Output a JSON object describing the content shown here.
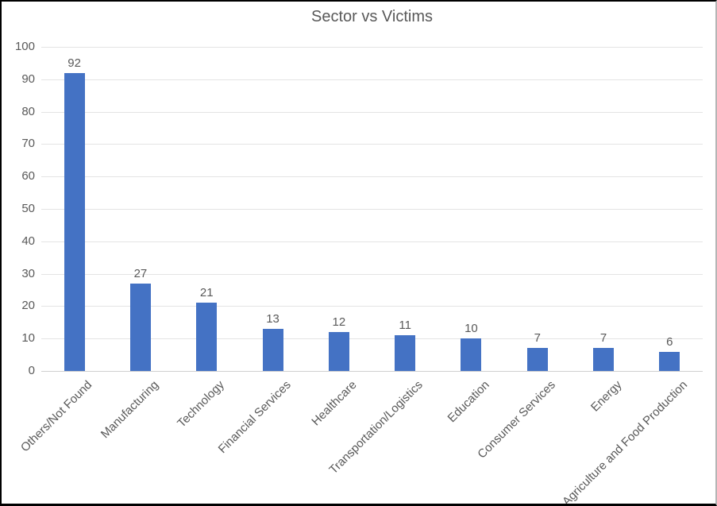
{
  "chart_data": {
    "type": "bar",
    "title": "Sector vs Victims",
    "categories": [
      "Others/Not Found",
      "Manufacturing",
      "Technology",
      "Financial Services",
      "Healthcare",
      "Transportation/Logistics",
      "Education",
      "Consumer Services",
      "Energy",
      "Agriculture and Food Production"
    ],
    "values": [
      92,
      27,
      21,
      13,
      12,
      11,
      10,
      7,
      7,
      6
    ],
    "data_labels": [
      92,
      27,
      21,
      13,
      12,
      11,
      10,
      7,
      7,
      6
    ],
    "xlabel": "",
    "ylabel": "",
    "ylim": [
      0,
      100
    ],
    "yticks": [
      0,
      10,
      20,
      30,
      40,
      50,
      60,
      70,
      80,
      90,
      100
    ],
    "grid": true,
    "legend": false,
    "x_label_rotation_deg": 45,
    "bar_color": "#4472c4",
    "gridline_color": "#e4e4e4",
    "axis_line_color": "#cfcfcf",
    "text_color": "#595959",
    "background_color": "#ffffff"
  }
}
